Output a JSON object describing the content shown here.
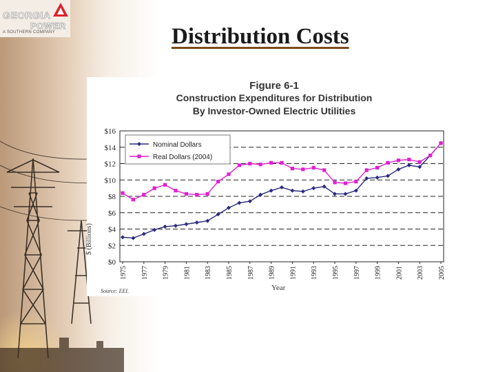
{
  "logo": {
    "line1": "GEORGIA",
    "line2": "POWER",
    "tagline": "A SOUTHERN COMPANY"
  },
  "slide": {
    "title": "Distribution Costs"
  },
  "colors": {
    "nominal": "#2a2a80",
    "real": "#e020d0",
    "title_underline": "#7a4a1a"
  },
  "chart_data": {
    "type": "line",
    "figure_label": "Figure 6-1",
    "title": "Construction Expenditures for Distribution",
    "subtitle": "By Investor-Owned Electric Utilities",
    "xlabel": "Year",
    "ylabel": "$ (Billions)",
    "source": "Source:  EEI.",
    "ylim": [
      0,
      16
    ],
    "y_ticks": [
      "$0",
      "$2",
      "$4",
      "$6",
      "$8",
      "$10",
      "$12",
      "$14",
      "$16"
    ],
    "x": [
      1975,
      1976,
      1977,
      1978,
      1979,
      1980,
      1981,
      1982,
      1983,
      1984,
      1985,
      1986,
      1987,
      1988,
      1989,
      1990,
      1991,
      1992,
      1993,
      1994,
      1995,
      1996,
      1997,
      1998,
      1999,
      2000,
      2001,
      2002,
      2003,
      2004,
      2005
    ],
    "x_tick_labels": [
      "1975",
      "1977",
      "1979",
      "1981",
      "1983",
      "1985",
      "1987",
      "1989",
      "1991",
      "1993",
      "1995",
      "1997",
      "1999",
      "2001",
      "2003",
      "2005"
    ],
    "legend_position": "top-left",
    "series": [
      {
        "name": "Nominal Dollars",
        "marker": "diamond",
        "values": [
          3.0,
          2.9,
          3.4,
          3.9,
          4.3,
          4.4,
          4.6,
          4.8,
          5.0,
          5.8,
          6.6,
          7.2,
          7.4,
          8.2,
          8.7,
          9.1,
          8.7,
          8.6,
          9.0,
          9.2,
          8.3,
          8.3,
          8.7,
          10.2,
          10.3,
          10.5,
          11.3,
          11.8,
          11.6,
          13.0,
          14.5
        ]
      },
      {
        "name": "Real Dollars (2004)",
        "marker": "square",
        "values": [
          8.4,
          7.6,
          8.2,
          9.0,
          9.4,
          8.7,
          8.3,
          8.2,
          8.3,
          9.8,
          10.7,
          11.8,
          12.0,
          11.9,
          12.1,
          12.1,
          11.4,
          11.3,
          11.5,
          11.2,
          9.7,
          9.6,
          9.8,
          11.2,
          11.5,
          12.1,
          12.4,
          12.5,
          12.2,
          13.0,
          14.5
        ]
      }
    ]
  }
}
